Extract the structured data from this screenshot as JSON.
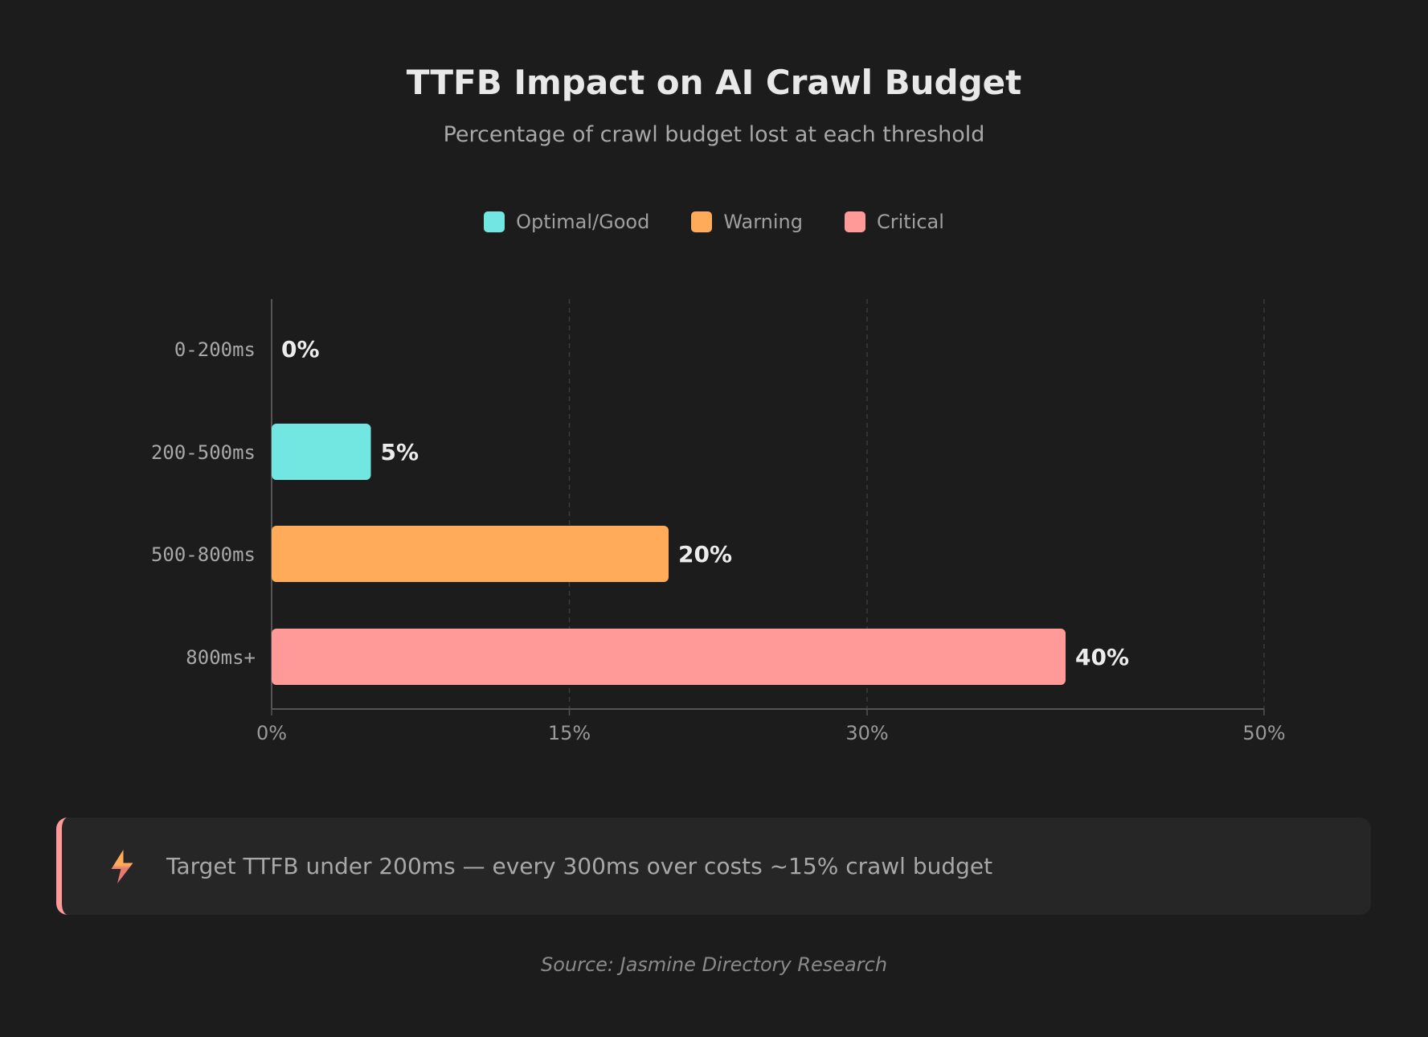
{
  "chart_data": {
    "type": "bar",
    "orientation": "horizontal",
    "title": "TTFB Impact on AI Crawl Budget",
    "subtitle": "Percentage of crawl budget lost at each threshold",
    "categories": [
      "0-200ms",
      "200-500ms",
      "500-800ms",
      "800ms+"
    ],
    "values": [
      0,
      5,
      20,
      40
    ],
    "value_labels": [
      "0%",
      "5%",
      "20%",
      "40%"
    ],
    "bar_status": [
      "optimal",
      "optimal",
      "warning",
      "critical"
    ],
    "xlim": [
      0,
      50
    ],
    "x_ticks": [
      0,
      15,
      30,
      50
    ],
    "x_tick_labels": [
      "0%",
      "15%",
      "30%",
      "50%"
    ],
    "grid": true,
    "legend_placement": "top-center",
    "legend": [
      {
        "key": "optimal",
        "label": "Optimal/Good",
        "color": "#72e6e0"
      },
      {
        "key": "warning",
        "label": "Warning",
        "color": "#ffab5a"
      },
      {
        "key": "critical",
        "label": "Critical",
        "color": "#ff9a98"
      }
    ]
  },
  "callout": {
    "icon": "lightning-icon",
    "text": "Target TTFB under 200ms — every 300ms over costs ~15% crawl budget",
    "accent": "#ff9a98"
  },
  "source": "Source: Jasmine Directory Research"
}
